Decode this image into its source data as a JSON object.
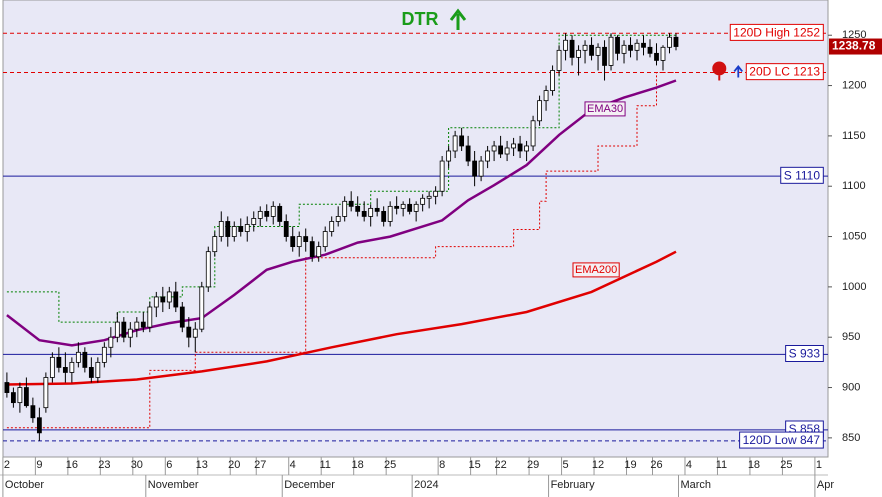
{
  "chart_data": {
    "type": "candlestick",
    "title": "DTR",
    "xlim": [
      -0.6,
      126.4
    ],
    "ylim": [
      831,
      1285
    ],
    "yticks": [
      850,
      900,
      950,
      1000,
      1050,
      1100,
      1150,
      1200,
      1250
    ],
    "xticks": [
      {
        "value": 0,
        "label": "2"
      },
      {
        "value": 5,
        "label": "9"
      },
      {
        "value": 10,
        "label": "16"
      },
      {
        "value": 15,
        "label": "23"
      },
      {
        "value": 20,
        "label": "30"
      },
      {
        "value": 25,
        "label": "6"
      },
      {
        "value": 30,
        "label": "13"
      },
      {
        "value": 35,
        "label": "20"
      },
      {
        "value": 39,
        "label": "27"
      },
      {
        "value": 44,
        "label": "4"
      },
      {
        "value": 49,
        "label": "11"
      },
      {
        "value": 54,
        "label": "18"
      },
      {
        "value": 59,
        "label": "25"
      },
      {
        "value": 67,
        "label": "8"
      },
      {
        "value": 72,
        "label": "15"
      },
      {
        "value": 76,
        "label": "22"
      },
      {
        "value": 81,
        "label": "29"
      },
      {
        "value": 86,
        "label": "5"
      },
      {
        "value": 91,
        "label": "12"
      },
      {
        "value": 96,
        "label": "19"
      },
      {
        "value": 100,
        "label": "26"
      },
      {
        "value": 105,
        "label": "4"
      },
      {
        "value": 110,
        "label": "11"
      },
      {
        "value": 115,
        "label": "18"
      },
      {
        "value": 120,
        "label": "25"
      },
      {
        "value": 125,
        "label": "1"
      }
    ],
    "month_labels": [
      {
        "value": 0,
        "label": "October"
      },
      {
        "value": 22,
        "label": "November"
      },
      {
        "value": 43,
        "label": "December"
      },
      {
        "value": 63,
        "label": "2024"
      },
      {
        "value": 84,
        "label": "February"
      },
      {
        "value": 104,
        "label": "March"
      },
      {
        "value": 125,
        "label": "Apr"
      }
    ],
    "up_color": "#ffffff",
    "down_color": "#000000",
    "open": [
      905,
      895,
      885,
      900,
      882,
      870,
      880,
      910,
      930,
      920,
      915,
      925,
      935,
      920,
      910,
      925,
      940,
      950,
      965,
      950,
      958,
      965,
      960,
      980,
      990,
      985,
      995,
      980,
      960,
      950,
      958,
      1000,
      1035,
      1050,
      1065,
      1050,
      1060,
      1055,
      1062,
      1068,
      1075,
      1070,
      1080,
      1065,
      1050,
      1040,
      1050,
      1045,
      1030,
      1040,
      1055,
      1065,
      1070,
      1085,
      1080,
      1075,
      1070,
      1078,
      1075,
      1065,
      1080,
      1078,
      1082,
      1075,
      1082,
      1088,
      1090,
      1095,
      1125,
      1135,
      1150,
      1140,
      1125,
      1110,
      1125,
      1135,
      1140,
      1132,
      1138,
      1142,
      1135,
      1140,
      1165,
      1185,
      1195,
      1215,
      1235,
      1245,
      1228,
      1235,
      1240,
      1230,
      1238,
      1220,
      1248,
      1232,
      1240,
      1235,
      1242,
      1238,
      1232,
      1225,
      1238,
      1248
    ],
    "high": [
      915,
      900,
      905,
      910,
      890,
      880,
      915,
      935,
      940,
      935,
      930,
      945,
      940,
      930,
      930,
      945,
      960,
      975,
      970,
      965,
      970,
      975,
      985,
      995,
      1000,
      1000,
      1005,
      985,
      970,
      965,
      1005,
      1040,
      1055,
      1075,
      1070,
      1065,
      1068,
      1070,
      1075,
      1080,
      1082,
      1085,
      1083,
      1072,
      1060,
      1055,
      1058,
      1050,
      1045,
      1060,
      1070,
      1080,
      1090,
      1095,
      1090,
      1085,
      1082,
      1088,
      1080,
      1085,
      1090,
      1085,
      1088,
      1085,
      1092,
      1095,
      1100,
      1130,
      1140,
      1155,
      1158,
      1150,
      1135,
      1130,
      1140,
      1145,
      1150,
      1145,
      1148,
      1150,
      1145,
      1170,
      1190,
      1200,
      1220,
      1240,
      1252,
      1250,
      1240,
      1245,
      1248,
      1242,
      1245,
      1252,
      1250,
      1245,
      1248,
      1246,
      1250,
      1246,
      1242,
      1240,
      1252,
      1252
    ],
    "low": [
      890,
      880,
      875,
      880,
      865,
      847,
      875,
      905,
      915,
      905,
      905,
      920,
      915,
      905,
      905,
      920,
      930,
      945,
      945,
      940,
      950,
      955,
      955,
      970,
      975,
      978,
      975,
      955,
      940,
      935,
      955,
      995,
      1030,
      1045,
      1040,
      1045,
      1050,
      1045,
      1055,
      1060,
      1065,
      1062,
      1060,
      1045,
      1035,
      1030,
      1035,
      1025,
      1025,
      1035,
      1050,
      1060,
      1065,
      1075,
      1070,
      1065,
      1060,
      1070,
      1060,
      1060,
      1072,
      1070,
      1072,
      1065,
      1075,
      1078,
      1082,
      1090,
      1118,
      1128,
      1135,
      1120,
      1100,
      1105,
      1118,
      1125,
      1128,
      1125,
      1130,
      1128,
      1125,
      1135,
      1160,
      1175,
      1190,
      1210,
      1225,
      1220,
      1210,
      1222,
      1225,
      1215,
      1205,
      1215,
      1225,
      1222,
      1228,
      1225,
      1230,
      1228,
      1220,
      1215,
      1232,
      1235
    ],
    "close": [
      895,
      885,
      900,
      882,
      870,
      855,
      910,
      930,
      920,
      915,
      925,
      935,
      920,
      910,
      925,
      940,
      950,
      965,
      950,
      958,
      965,
      960,
      980,
      990,
      985,
      995,
      980,
      960,
      950,
      958,
      1000,
      1035,
      1050,
      1065,
      1050,
      1060,
      1055,
      1062,
      1068,
      1075,
      1070,
      1080,
      1065,
      1050,
      1040,
      1050,
      1045,
      1030,
      1040,
      1055,
      1065,
      1070,
      1085,
      1080,
      1075,
      1070,
      1078,
      1075,
      1065,
      1080,
      1078,
      1082,
      1075,
      1082,
      1088,
      1090,
      1095,
      1125,
      1135,
      1150,
      1140,
      1125,
      1110,
      1125,
      1135,
      1140,
      1132,
      1138,
      1142,
      1135,
      1140,
      1165,
      1185,
      1195,
      1215,
      1235,
      1245,
      1228,
      1235,
      1240,
      1230,
      1238,
      1220,
      1248,
      1232,
      1240,
      1235,
      1242,
      1238,
      1232,
      1225,
      1238,
      1248,
      1238.78
    ],
    "overlays": [
      {
        "name": "EMA30",
        "color": "#800080",
        "x": [
          0,
          5,
          10,
          15,
          20,
          25,
          30,
          35,
          40,
          44,
          49,
          54,
          59,
          67,
          71,
          75,
          80,
          85,
          90,
          95,
          100,
          103
        ],
        "values": [
          972,
          947,
          942,
          947,
          957,
          964,
          969,
          992,
          1017,
          1025,
          1032,
          1044,
          1050,
          1066,
          1086,
          1101,
          1121,
          1151,
          1176,
          1188,
          1198,
          1205
        ]
      },
      {
        "name": "EMA200",
        "color": "#e00000",
        "x": [
          0,
          10,
          20,
          30,
          40,
          50,
          60,
          70,
          80,
          90,
          100,
          103
        ],
        "values": [
          903,
          904,
          908,
          916,
          926,
          940,
          953,
          963,
          975,
          995,
          1025,
          1035
        ]
      }
    ],
    "channels": [
      {
        "color": "#008000",
        "x": [
          0,
          8,
          8,
          17,
          17,
          22,
          22,
          27,
          27,
          32,
          32,
          45,
          45,
          56,
          56,
          68,
          68,
          85,
          85,
          103
        ],
        "values": [
          995,
          995,
          965,
          965,
          975,
          975,
          990,
          990,
          1000,
          1000,
          1060,
          1060,
          1082,
          1082,
          1095,
          1095,
          1158,
          1158,
          1250,
          1250
        ]
      },
      {
        "color": "#e00000",
        "x": [
          0,
          22,
          22,
          29,
          29,
          46,
          46,
          66,
          66,
          78,
          78,
          82,
          82,
          83,
          83,
          91,
          91,
          97,
          97,
          100,
          100,
          103
        ],
        "values": [
          860,
          860,
          917,
          917,
          935,
          935,
          1029,
          1029,
          1040,
          1040,
          1057,
          1057,
          1085,
          1085,
          1115,
          1115,
          1140,
          1140,
          1180,
          1180,
          1213,
          1213
        ]
      }
    ],
    "levels": [
      {
        "value": 1252,
        "label": "120D High 1252",
        "color": "#e00000",
        "dashed": true
      },
      {
        "value": 1213,
        "label": "20D LC 1213",
        "color": "#e00000",
        "dashed": true,
        "stop_marker": true
      },
      {
        "value": 1110,
        "label": "S 1110",
        "color": "#1a1a9c",
        "dashed": false
      },
      {
        "value": 933,
        "label": "S 933",
        "color": "#1a1a9c",
        "dashed": false
      },
      {
        "value": 858,
        "label": "S 858",
        "color": "#1a1a9c",
        "dashed": false
      },
      {
        "value": 847,
        "label": "120D Low 847",
        "color": "#1a1a9c",
        "dashed": true
      }
    ]
  }
}
